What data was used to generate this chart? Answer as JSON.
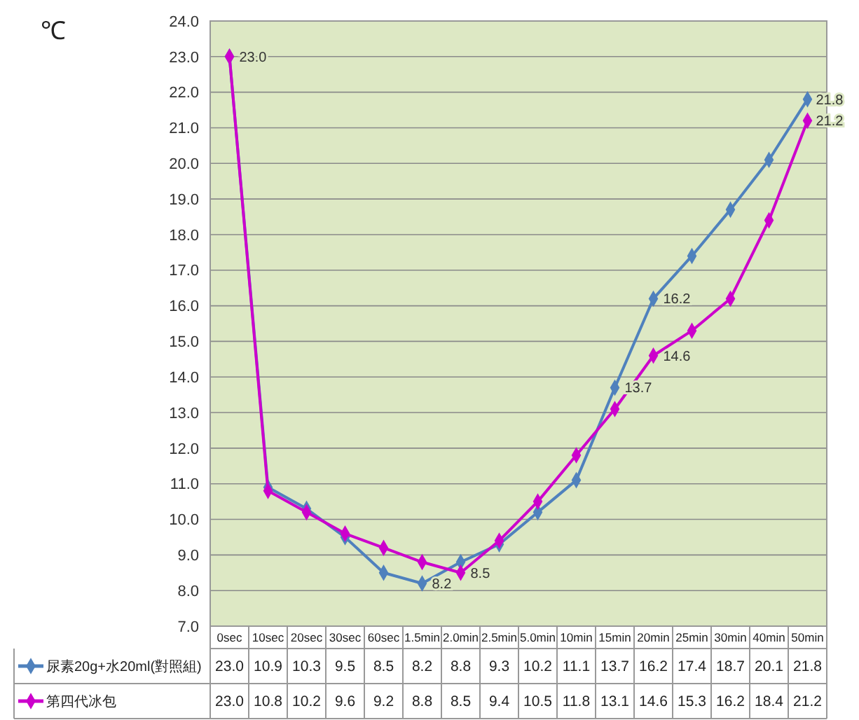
{
  "chart_data": {
    "type": "line",
    "ylabel": "℃",
    "categories": [
      "0sec",
      "10sec",
      "20sec",
      "30sec",
      "60sec",
      "1.5min",
      "2.0min",
      "2.5min",
      "5.0min",
      "10min",
      "15min",
      "20min",
      "25min",
      "30min",
      "40min",
      "50min"
    ],
    "series": [
      {
        "name": "尿素20g+水20ml(對照組)",
        "color": "#4f81bd",
        "values": [
          23.0,
          10.9,
          10.3,
          9.5,
          8.5,
          8.2,
          8.8,
          9.3,
          10.2,
          11.1,
          13.7,
          16.2,
          17.4,
          18.7,
          20.1,
          21.8
        ],
        "value_labels": [
          "23.0",
          "10.9",
          "10.3",
          "9.5",
          "8.5",
          "8.2",
          "8.8",
          "9.3",
          "10.2",
          "11.1",
          "13.7",
          "16.2",
          "17.4",
          "18.7",
          "20.1",
          "21.8"
        ]
      },
      {
        "name": "第四代冰包",
        "color": "#cc00cc",
        "values": [
          23.0,
          10.8,
          10.2,
          9.6,
          9.2,
          8.8,
          8.5,
          9.4,
          10.5,
          11.8,
          13.1,
          14.6,
          15.3,
          16.2,
          18.4,
          21.2
        ],
        "value_labels": [
          "23.0",
          "10.8",
          "10.2",
          "9.6",
          "9.2",
          "8.8",
          "8.5",
          "9.4",
          "10.5",
          "11.8",
          "13.1",
          "14.6",
          "15.3",
          "16.2",
          "18.4",
          "21.2"
        ]
      }
    ],
    "ylim": [
      7,
      24
    ],
    "yticks": [
      {
        "value": 7,
        "label": "7.0"
      },
      {
        "value": 8,
        "label": "8.0"
      },
      {
        "value": 9,
        "label": "9.0"
      },
      {
        "value": 10,
        "label": "10.0"
      },
      {
        "value": 11,
        "label": "11.0"
      },
      {
        "value": 12,
        "label": "12.0"
      },
      {
        "value": 13,
        "label": "13.0"
      },
      {
        "value": 14,
        "label": "14.0"
      },
      {
        "value": 15,
        "label": "15.0"
      },
      {
        "value": 16,
        "label": "16.0"
      },
      {
        "value": 17,
        "label": "17.0"
      },
      {
        "value": 18,
        "label": "18.0"
      },
      {
        "value": 19,
        "label": "19.0"
      },
      {
        "value": 20,
        "label": "20.0"
      },
      {
        "value": 21,
        "label": "21.0"
      },
      {
        "value": 22,
        "label": "22.0"
      },
      {
        "value": 23,
        "label": "23.0"
      },
      {
        "value": 24,
        "label": "24.0"
      }
    ],
    "grid": "y",
    "marker": "diamond",
    "line_style": "solid",
    "legend": "bottom",
    "annotations": [
      {
        "text": "23.0",
        "x": "0sec",
        "y": 23.0
      },
      {
        "text": "8.2",
        "x": "1.5min",
        "y": 8.2
      },
      {
        "text": "8.5",
        "x": "2.0min",
        "y": 8.5
      },
      {
        "text": "13.7",
        "x": "15min",
        "y": 13.7
      },
      {
        "text": "16.2",
        "x": "20min",
        "y": 16.2
      },
      {
        "text": "14.6",
        "x": "20min",
        "y": 14.6
      },
      {
        "text": "21.8",
        "x": "50min",
        "y": 21.8
      },
      {
        "text": "21.2",
        "x": "50min",
        "y": 21.2
      }
    ]
  }
}
